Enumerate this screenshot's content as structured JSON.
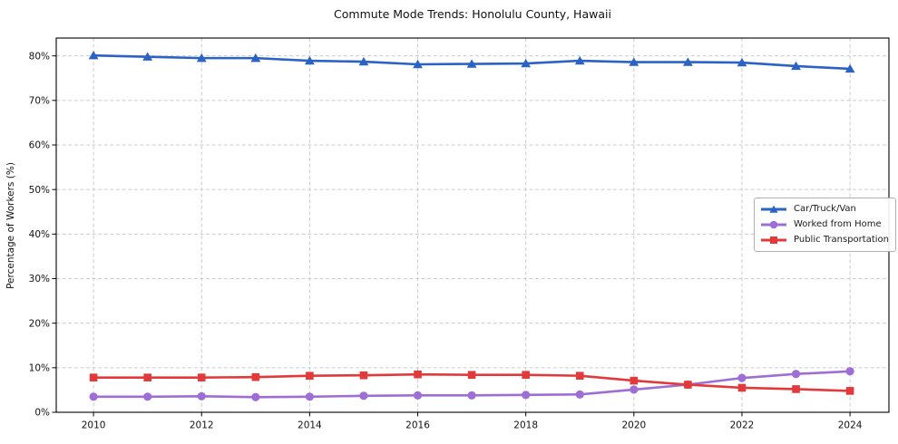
{
  "chart": {
    "title": "Commute Mode Trends: Honolulu County, Hawaii",
    "ylabel": "Percentage of Workers (%)"
  },
  "chart_data": {
    "type": "line",
    "title": "Commute Mode Trends: Honolulu County, Hawaii",
    "xlabel": "",
    "ylabel": "Percentage of Workers (%)",
    "x": [
      2010,
      2011,
      2012,
      2013,
      2014,
      2015,
      2016,
      2017,
      2018,
      2019,
      2020,
      2021,
      2022,
      2023,
      2024
    ],
    "series": [
      {
        "name": "Car/Truck/Van",
        "color": "#2b62c6",
        "marker": "triangle",
        "values": [
          80.1,
          79.8,
          79.5,
          79.5,
          78.9,
          78.7,
          78.1,
          78.2,
          78.3,
          78.9,
          78.6,
          78.6,
          78.5,
          77.7,
          77.1
        ]
      },
      {
        "name": "Worked from Home",
        "color": "#9d6fd6",
        "marker": "circle",
        "values": [
          3.5,
          3.5,
          3.6,
          3.4,
          3.5,
          3.7,
          3.8,
          3.8,
          3.9,
          4.0,
          5.1,
          6.2,
          7.7,
          8.6,
          9.2
        ]
      },
      {
        "name": "Public Transportation",
        "color": "#e23a3a",
        "marker": "square",
        "values": [
          7.8,
          7.8,
          7.8,
          7.9,
          8.2,
          8.3,
          8.5,
          8.4,
          8.4,
          8.2,
          7.1,
          6.2,
          5.5,
          5.2,
          4.8
        ]
      }
    ],
    "x_tick_values": [
      2010,
      2012,
      2014,
      2016,
      2018,
      2020,
      2022,
      2024
    ],
    "x_tick_labels": [
      "2010",
      "2012",
      "2014",
      "2016",
      "2018",
      "2020",
      "2022",
      "2024"
    ],
    "y_tick_values": [
      0,
      10,
      20,
      30,
      40,
      50,
      60,
      70,
      80
    ],
    "y_tick_labels": [
      "0%",
      "10%",
      "20%",
      "30%",
      "40%",
      "50%",
      "60%",
      "70%",
      "80%"
    ],
    "xlim": [
      2009.31,
      2024.72
    ],
    "ylim": [
      0,
      84
    ],
    "grid": true,
    "grid_color": "#cccccc",
    "legend_position": "center right",
    "background_color": "#ffffff"
  }
}
